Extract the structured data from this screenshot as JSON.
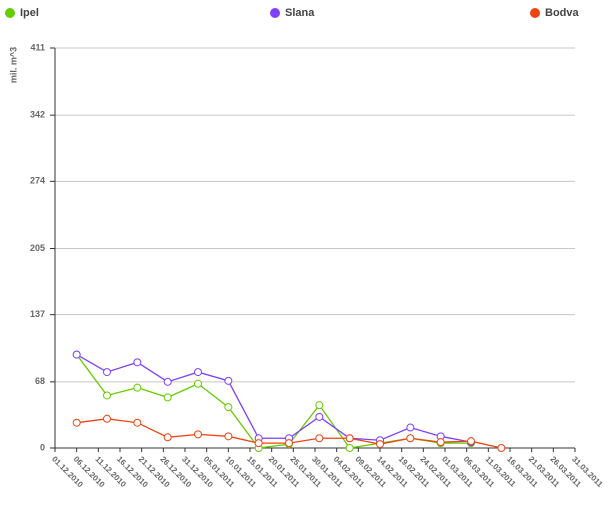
{
  "chart_data": {
    "type": "line",
    "y_label": "mil. m^3",
    "x": [
      "06.12.2010",
      "13.12.2010",
      "20.12.2010",
      "27.12.2010",
      "03.01.2011",
      "10.01.2011",
      "17.01.2011",
      "24.01.2011",
      "31.01.2011",
      "07.02.2011",
      "14.02.2011",
      "21.02.2011",
      "28.02.2011",
      "07.03.2011",
      "14.03.2011"
    ],
    "series": [
      {
        "name": "Ipel",
        "color": "#66cc00",
        "values": [
          96,
          54,
          62,
          52,
          66,
          42,
          0,
          4,
          44,
          0,
          5,
          10,
          5,
          5,
          null
        ]
      },
      {
        "name": "Slana",
        "color": "#7f3fff",
        "values": [
          96,
          78,
          88,
          68,
          78,
          69,
          10,
          10,
          32,
          10,
          8,
          21,
          12,
          6,
          null
        ]
      },
      {
        "name": "Bodva",
        "color": "#ee4411",
        "values": [
          26,
          30,
          26,
          11,
          14,
          12,
          5,
          5,
          10,
          10,
          4,
          10,
          6,
          7,
          0
        ]
      }
    ],
    "xlim": [
      "01.12.2010",
      "31.03.2011"
    ],
    "xticks": [
      "01.12.2010",
      "06.12.2010",
      "11.12.2010",
      "16.12.2010",
      "21.12.2010",
      "26.12.2010",
      "31.12.2010",
      "05.01.2011",
      "10.01.2011",
      "15.01.2011",
      "20.01.2011",
      "25.01.2011",
      "30.01.2011",
      "04.02.2011",
      "09.02.2011",
      "14.02.2011",
      "19.02.2011",
      "24.02.2011",
      "01.03.2011",
      "06.03.2011",
      "11.03.2011",
      "16.03.2011",
      "21.03.2011",
      "26.03.2011",
      "31.03.2011"
    ],
    "ylim": [
      0,
      411
    ],
    "yticks": [
      0,
      68,
      137,
      205,
      274,
      342,
      411
    ],
    "grid": true
  }
}
